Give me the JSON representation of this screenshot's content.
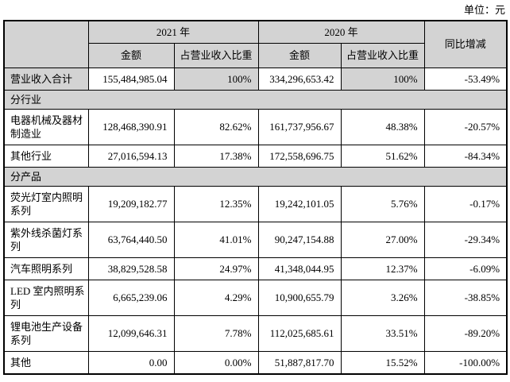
{
  "meta": {
    "unit_label": "单位：元"
  },
  "colors": {
    "shaded_bg": "#d3d3d3",
    "border": "#000000",
    "text": "#000000"
  },
  "table": {
    "header": {
      "year_2021": "2021 年",
      "year_2020": "2020 年",
      "yoy": "同比增减",
      "amount": "金额",
      "share": "占营业收入比重"
    },
    "rows": [
      {
        "type": "total",
        "label": "营业收入合计",
        "a2021": "155,484,985.04",
        "p2021": "100%",
        "a2020": "334,296,653.42",
        "p2020": "100%",
        "yoy": "-53.49%"
      },
      {
        "type": "section",
        "label": "分行业"
      },
      {
        "type": "data",
        "label": "电器机械及器材制造业",
        "a2021": "128,468,390.91",
        "p2021": "82.62%",
        "a2020": "161,737,956.67",
        "p2020": "48.38%",
        "yoy": "-20.57%"
      },
      {
        "type": "data",
        "label": "其他行业",
        "a2021": "27,016,594.13",
        "p2021": "17.38%",
        "a2020": "172,558,696.75",
        "p2020": "51.62%",
        "yoy": "-84.34%"
      },
      {
        "type": "section",
        "label": "分产品"
      },
      {
        "type": "data",
        "label": "荧光灯室内照明系列",
        "a2021": "19,209,182.77",
        "p2021": "12.35%",
        "a2020": "19,242,101.05",
        "p2020": "5.76%",
        "yoy": "-0.17%"
      },
      {
        "type": "data",
        "label": "紫外线杀菌灯系列",
        "a2021": "63,764,440.50",
        "p2021": "41.01%",
        "a2020": "90,247,154.88",
        "p2020": "27.00%",
        "yoy": "-29.34%"
      },
      {
        "type": "data",
        "label": "汽车照明系列",
        "a2021": "38,829,528.58",
        "p2021": "24.97%",
        "a2020": "41,348,044.95",
        "p2020": "12.37%",
        "yoy": "-6.09%"
      },
      {
        "type": "data",
        "label": "LED 室内照明系列",
        "a2021": "6,665,239.06",
        "p2021": "4.29%",
        "a2020": "10,900,655.79",
        "p2020": "3.26%",
        "yoy": "-38.85%"
      },
      {
        "type": "data",
        "label": "锂电池生产设备系列",
        "a2021": "12,099,646.31",
        "p2021": "7.78%",
        "a2020": "112,025,685.61",
        "p2020": "33.51%",
        "yoy": "-89.20%"
      },
      {
        "type": "data",
        "label": "其他",
        "a2021": "0.00",
        "p2021": "0.00%",
        "a2020": "51,887,817.70",
        "p2020": "15.52%",
        "yoy": "-100.00%"
      }
    ]
  }
}
